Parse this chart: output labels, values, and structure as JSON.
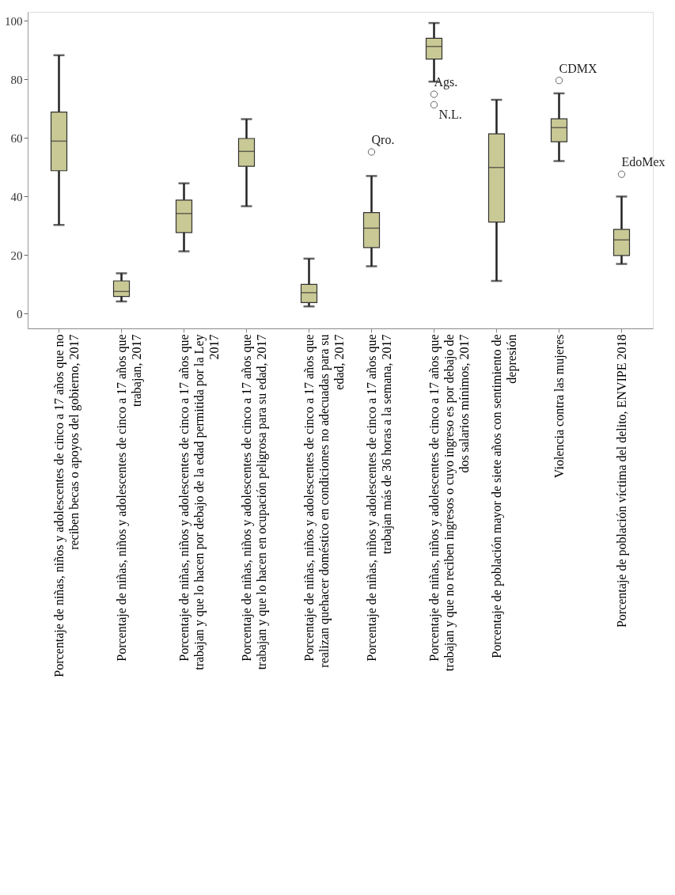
{
  "chart_data": {
    "type": "box",
    "categories": [
      "Porcentaje de niñas, niños y adolescentes de cinco a 17 años que no reciben becas o apoyos del gobierno, 2017",
      "Porcentaje de niñas, niños y adolescentes de cinco a 17 años que trabajan, 2017",
      "Porcentaje de niñas, niños y adolescentes de cinco a 17 años que trabajan y que lo hacen por debajo de la edad permitida por la Ley 2017",
      "Porcentaje de niñas, niños y adolescentes de cinco a 17 años que trabajan y que lo hacen en ocupación peligrosa para su edad, 2017",
      "Porcentaje de niñas, niños y adolescentes de cinco a 17 años que realizan quehacer doméstico en condiciones no adecuadas para su edad, 2017",
      "Porcentaje de niñas, niños y adolescentes de cinco a 17 años que trabajan más de 36 horas a la semana, 2017",
      "Porcentaje de niñas, niños y adolescentes de cinco a 17 años que trabajan y que no reciben ingresos o cuyo ingreso es por debajo de dos salarios mínimos, 2017",
      "Porcentaje de población mayor de siete años con sentimiento de depresión",
      "Violencia contra las mujeres",
      "Porcentaje de población víctima del delito, ENVIPE 2018"
    ],
    "boxes": [
      {
        "low": 30.3,
        "q1": 48.8,
        "median": 58.9,
        "q3": 68.8,
        "high": 88.2
      },
      {
        "low": 4.2,
        "q1": 5.9,
        "median": 7.6,
        "q3": 11.2,
        "high": 13.8
      },
      {
        "low": 21.3,
        "q1": 27.7,
        "median": 34.2,
        "q3": 38.8,
        "high": 44.5
      },
      {
        "low": 36.7,
        "q1": 50.3,
        "median": 55.4,
        "q3": 59.8,
        "high": 66.4
      },
      {
        "low": 2.5,
        "q1": 3.8,
        "median": 7.2,
        "q3": 10.0,
        "high": 18.8
      },
      {
        "low": 16.2,
        "q1": 22.6,
        "median": 29.2,
        "q3": 34.5,
        "high": 47.0,
        "outliers": [
          55.2
        ]
      },
      {
        "low": 79.2,
        "q1": 86.9,
        "median": 91.2,
        "q3": 94.0,
        "high": 99.2,
        "outliers": [
          74.9,
          71.3
        ]
      },
      {
        "low": 11.2,
        "q1": 31.3,
        "median": 49.9,
        "q3": 61.4,
        "high": 73.0
      },
      {
        "low": 52.1,
        "q1": 58.7,
        "median": 63.5,
        "q3": 66.5,
        "high": 75.2,
        "outliers": [
          79.6
        ]
      },
      {
        "low": 17.0,
        "q1": 19.9,
        "median": 25.2,
        "q3": 28.8,
        "high": 40.0,
        "outliers": [
          47.6
        ]
      }
    ],
    "color": "#c9c995",
    "ylim": [
      -5,
      103
    ],
    "yticks": [
      0,
      20,
      40,
      60,
      80,
      100
    ],
    "grid": false,
    "annotations": [
      "Qro.",
      "Ags.",
      "N.L.",
      "CDMX",
      "EdoMex"
    ]
  }
}
